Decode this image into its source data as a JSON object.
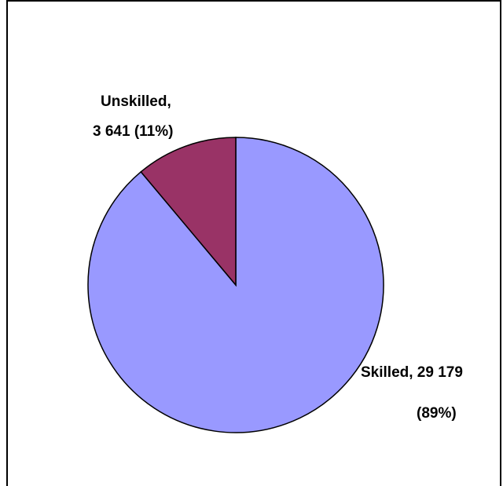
{
  "chart_data": {
    "type": "pie",
    "slices": [
      {
        "name": "Skilled",
        "value": 29179,
        "percent": 89,
        "label_line1": "Skilled, 29 179",
        "label_line2": "(89%)",
        "color": "#9999FF"
      },
      {
        "name": "Unskilled",
        "value": 3641,
        "percent": 11,
        "label_line1": "Unskilled,",
        "label_line2": "3 641 (11%)",
        "color": "#993366"
      }
    ],
    "start_angle": "12 o'clock",
    "direction": "clockwise",
    "legend": "none"
  },
  "colors": {
    "outline": "#000000",
    "frame": "#000000",
    "background": "#FFFFFF"
  }
}
